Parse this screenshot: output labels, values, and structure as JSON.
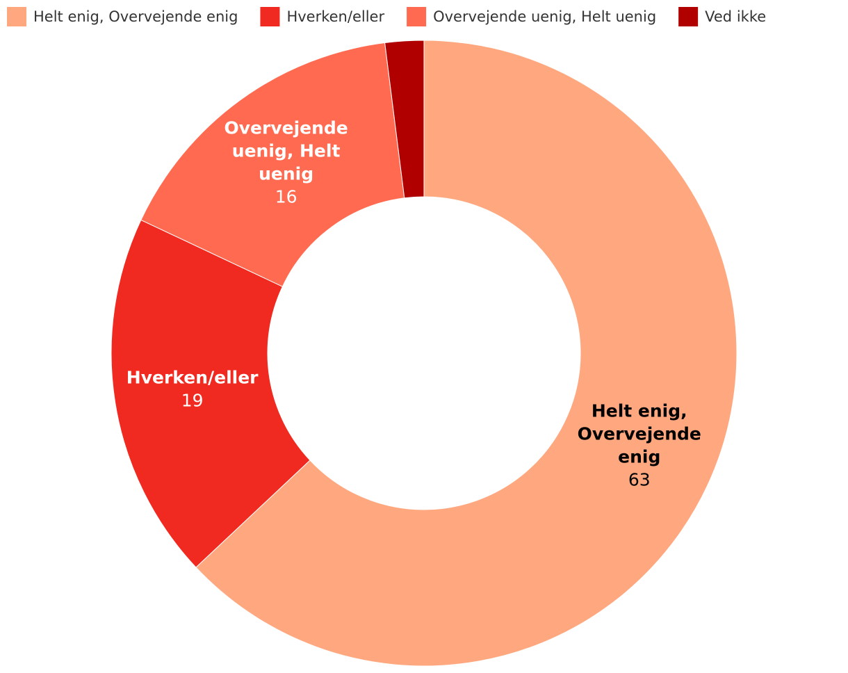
{
  "chart_data": {
    "type": "donut",
    "categories": [
      "Helt enig, Overvejende enig",
      "Hverken/eller",
      "Overvejende uenig, Helt uenig",
      "Ved ikke"
    ],
    "values": [
      63,
      19,
      16,
      2
    ],
    "colors": [
      "#ffa880",
      "#f02a20",
      "#ff6a50",
      "#b00000"
    ],
    "legend": "top"
  }
}
